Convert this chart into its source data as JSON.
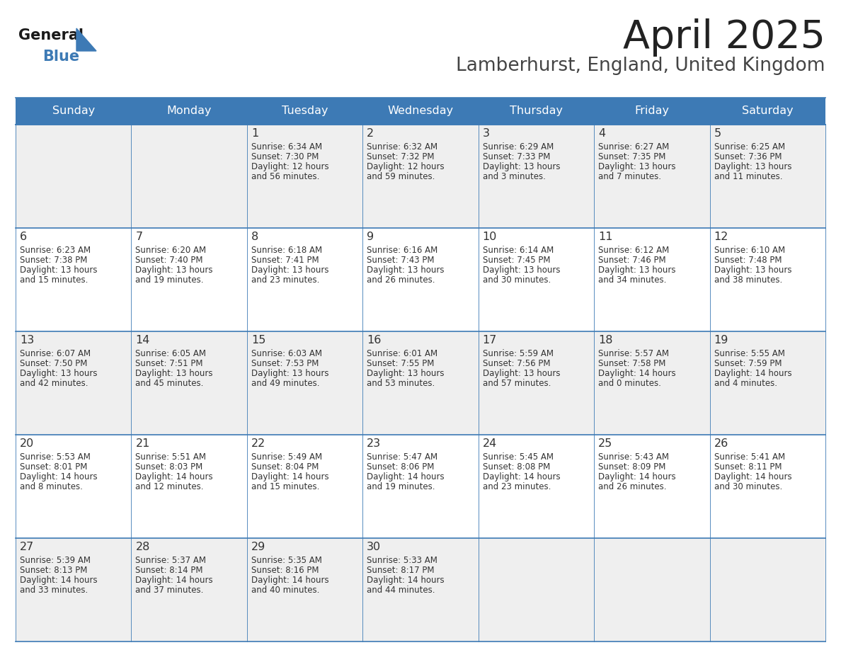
{
  "title": "April 2025",
  "subtitle": "Lamberhurst, England, United Kingdom",
  "header_bg": "#3d7ab5",
  "header_text_color": "#ffffff",
  "day_names": [
    "Sunday",
    "Monday",
    "Tuesday",
    "Wednesday",
    "Thursday",
    "Friday",
    "Saturday"
  ],
  "row_bg_odd": "#efefef",
  "row_bg_even": "#ffffff",
  "border_color": "#3d7ab5",
  "text_color": "#333333",
  "day_num_color": "#333333",
  "logo_general_color": "#1a1a1a",
  "logo_blue_color": "#3d7ab5",
  "title_color": "#222222",
  "subtitle_color": "#444444",
  "calendar": [
    [
      {
        "day": "",
        "sunrise": "",
        "sunset": "",
        "daylight": ""
      },
      {
        "day": "",
        "sunrise": "",
        "sunset": "",
        "daylight": ""
      },
      {
        "day": "1",
        "sunrise": "6:34 AM",
        "sunset": "7:30 PM",
        "daylight": "12 hours\nand 56 minutes."
      },
      {
        "day": "2",
        "sunrise": "6:32 AM",
        "sunset": "7:32 PM",
        "daylight": "12 hours\nand 59 minutes."
      },
      {
        "day": "3",
        "sunrise": "6:29 AM",
        "sunset": "7:33 PM",
        "daylight": "13 hours\nand 3 minutes."
      },
      {
        "day": "4",
        "sunrise": "6:27 AM",
        "sunset": "7:35 PM",
        "daylight": "13 hours\nand 7 minutes."
      },
      {
        "day": "5",
        "sunrise": "6:25 AM",
        "sunset": "7:36 PM",
        "daylight": "13 hours\nand 11 minutes."
      }
    ],
    [
      {
        "day": "6",
        "sunrise": "6:23 AM",
        "sunset": "7:38 PM",
        "daylight": "13 hours\nand 15 minutes."
      },
      {
        "day": "7",
        "sunrise": "6:20 AM",
        "sunset": "7:40 PM",
        "daylight": "13 hours\nand 19 minutes."
      },
      {
        "day": "8",
        "sunrise": "6:18 AM",
        "sunset": "7:41 PM",
        "daylight": "13 hours\nand 23 minutes."
      },
      {
        "day": "9",
        "sunrise": "6:16 AM",
        "sunset": "7:43 PM",
        "daylight": "13 hours\nand 26 minutes."
      },
      {
        "day": "10",
        "sunrise": "6:14 AM",
        "sunset": "7:45 PM",
        "daylight": "13 hours\nand 30 minutes."
      },
      {
        "day": "11",
        "sunrise": "6:12 AM",
        "sunset": "7:46 PM",
        "daylight": "13 hours\nand 34 minutes."
      },
      {
        "day": "12",
        "sunrise": "6:10 AM",
        "sunset": "7:48 PM",
        "daylight": "13 hours\nand 38 minutes."
      }
    ],
    [
      {
        "day": "13",
        "sunrise": "6:07 AM",
        "sunset": "7:50 PM",
        "daylight": "13 hours\nand 42 minutes."
      },
      {
        "day": "14",
        "sunrise": "6:05 AM",
        "sunset": "7:51 PM",
        "daylight": "13 hours\nand 45 minutes."
      },
      {
        "day": "15",
        "sunrise": "6:03 AM",
        "sunset": "7:53 PM",
        "daylight": "13 hours\nand 49 minutes."
      },
      {
        "day": "16",
        "sunrise": "6:01 AM",
        "sunset": "7:55 PM",
        "daylight": "13 hours\nand 53 minutes."
      },
      {
        "day": "17",
        "sunrise": "5:59 AM",
        "sunset": "7:56 PM",
        "daylight": "13 hours\nand 57 minutes."
      },
      {
        "day": "18",
        "sunrise": "5:57 AM",
        "sunset": "7:58 PM",
        "daylight": "14 hours\nand 0 minutes."
      },
      {
        "day": "19",
        "sunrise": "5:55 AM",
        "sunset": "7:59 PM",
        "daylight": "14 hours\nand 4 minutes."
      }
    ],
    [
      {
        "day": "20",
        "sunrise": "5:53 AM",
        "sunset": "8:01 PM",
        "daylight": "14 hours\nand 8 minutes."
      },
      {
        "day": "21",
        "sunrise": "5:51 AM",
        "sunset": "8:03 PM",
        "daylight": "14 hours\nand 12 minutes."
      },
      {
        "day": "22",
        "sunrise": "5:49 AM",
        "sunset": "8:04 PM",
        "daylight": "14 hours\nand 15 minutes."
      },
      {
        "day": "23",
        "sunrise": "5:47 AM",
        "sunset": "8:06 PM",
        "daylight": "14 hours\nand 19 minutes."
      },
      {
        "day": "24",
        "sunrise": "5:45 AM",
        "sunset": "8:08 PM",
        "daylight": "14 hours\nand 23 minutes."
      },
      {
        "day": "25",
        "sunrise": "5:43 AM",
        "sunset": "8:09 PM",
        "daylight": "14 hours\nand 26 minutes."
      },
      {
        "day": "26",
        "sunrise": "5:41 AM",
        "sunset": "8:11 PM",
        "daylight": "14 hours\nand 30 minutes."
      }
    ],
    [
      {
        "day": "27",
        "sunrise": "5:39 AM",
        "sunset": "8:13 PM",
        "daylight": "14 hours\nand 33 minutes."
      },
      {
        "day": "28",
        "sunrise": "5:37 AM",
        "sunset": "8:14 PM",
        "daylight": "14 hours\nand 37 minutes."
      },
      {
        "day": "29",
        "sunrise": "5:35 AM",
        "sunset": "8:16 PM",
        "daylight": "14 hours\nand 40 minutes."
      },
      {
        "day": "30",
        "sunrise": "5:33 AM",
        "sunset": "8:17 PM",
        "daylight": "14 hours\nand 44 minutes."
      },
      {
        "day": "",
        "sunrise": "",
        "sunset": "",
        "daylight": ""
      },
      {
        "day": "",
        "sunrise": "",
        "sunset": "",
        "daylight": ""
      },
      {
        "day": "",
        "sunrise": "",
        "sunset": "",
        "daylight": ""
      }
    ]
  ],
  "fig_width": 11.88,
  "fig_height": 9.18,
  "dpi": 100
}
